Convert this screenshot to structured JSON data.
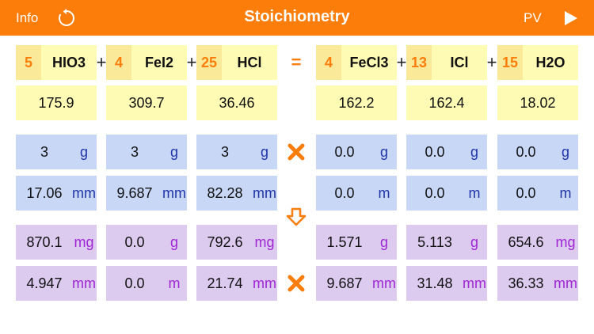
{
  "header": {
    "info": "Info",
    "title": "Stoichiometry",
    "pv": "PV"
  },
  "operators": [
    "+",
    "+",
    "=",
    "+",
    "+"
  ],
  "compounds": [
    {
      "coefficient": "5",
      "formula": "HIO3",
      "molar_mass": "175.9",
      "mass": {
        "value": "3",
        "unit": "g"
      },
      "moles": {
        "value": "17.06",
        "unit": "mm"
      },
      "yield_mass": {
        "value": "870.1",
        "unit": "mg"
      },
      "yield_moles": {
        "value": "4.947",
        "unit": "mm"
      }
    },
    {
      "coefficient": "4",
      "formula": "FeI2",
      "molar_mass": "309.7",
      "mass": {
        "value": "3",
        "unit": "g"
      },
      "moles": {
        "value": "9.687",
        "unit": "mm"
      },
      "yield_mass": {
        "value": "0.0",
        "unit": "g"
      },
      "yield_moles": {
        "value": "0.0",
        "unit": "m"
      }
    },
    {
      "coefficient": "25",
      "formula": "HCl",
      "molar_mass": "36.46",
      "mass": {
        "value": "3",
        "unit": "g"
      },
      "moles": {
        "value": "82.28",
        "unit": "mm"
      },
      "yield_mass": {
        "value": "792.6",
        "unit": "mg"
      },
      "yield_moles": {
        "value": "21.74",
        "unit": "mm"
      }
    },
    {
      "coefficient": "4",
      "formula": "FeCl3",
      "molar_mass": "162.2",
      "mass": {
        "value": "0.0",
        "unit": "g"
      },
      "moles": {
        "value": "0.0",
        "unit": "m"
      },
      "yield_mass": {
        "value": "1.571",
        "unit": "g"
      },
      "yield_moles": {
        "value": "9.687",
        "unit": "mm"
      }
    },
    {
      "coefficient": "13",
      "formula": "ICl",
      "molar_mass": "162.4",
      "mass": {
        "value": "0.0",
        "unit": "g"
      },
      "moles": {
        "value": "0.0",
        "unit": "m"
      },
      "yield_mass": {
        "value": "5.113",
        "unit": "g"
      },
      "yield_moles": {
        "value": "31.48",
        "unit": "mm"
      }
    },
    {
      "coefficient": "15",
      "formula": "H2O",
      "molar_mass": "18.02",
      "mass": {
        "value": "0.0",
        "unit": "g"
      },
      "moles": {
        "value": "0.0",
        "unit": "m"
      },
      "yield_mass": {
        "value": "654.6",
        "unit": "mg"
      },
      "yield_moles": {
        "value": "36.33",
        "unit": "mm"
      }
    }
  ]
}
